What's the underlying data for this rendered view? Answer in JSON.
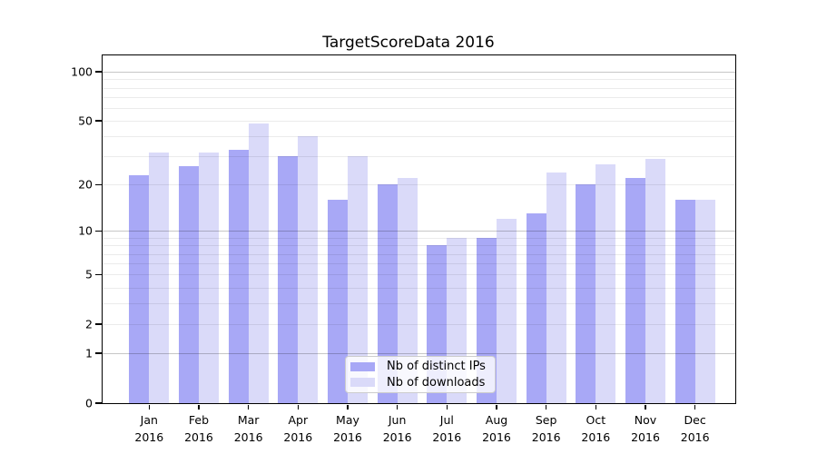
{
  "chart_data": {
    "type": "bar",
    "title": "TargetScoreData 2016",
    "categories": [
      "Jan",
      "Feb",
      "Mar",
      "Apr",
      "May",
      "Jun",
      "Jul",
      "Aug",
      "Sep",
      "Oct",
      "Nov",
      "Dec"
    ],
    "category_year": "2016",
    "series": [
      {
        "name": "Nb of distinct IPs",
        "color": "#a8a8f6",
        "values": [
          23,
          26,
          33,
          30,
          16,
          20,
          8,
          9,
          13,
          20,
          22,
          16
        ]
      },
      {
        "name": "Nb of downloads",
        "color": "#dadaf9",
        "values": [
          32,
          32,
          48,
          40,
          30,
          22,
          9,
          12,
          24,
          27,
          29,
          16
        ]
      }
    ],
    "xlabel": "",
    "ylabel": "",
    "yscale": "symlog",
    "ylim": [
      0,
      126
    ],
    "ytick_labels": [
      "0",
      "1",
      "2",
      "5",
      "10",
      "20",
      "50",
      "100"
    ],
    "ytick_values": [
      0,
      1,
      2,
      5,
      10,
      20,
      50,
      100
    ],
    "major_gridlines": [
      1,
      10,
      100
    ],
    "minor_gridlines": [
      2,
      3,
      4,
      5,
      6,
      7,
      8,
      9,
      20,
      30,
      40,
      50,
      60,
      70,
      80,
      90
    ],
    "grid": true,
    "legend_position": "lower center"
  },
  "legend": {
    "items": [
      {
        "label": "Nb of distinct IPs",
        "color": "#a8a8f6"
      },
      {
        "label": "Nb of downloads",
        "color": "#dadaf9"
      }
    ]
  },
  "colors": {
    "background": "#ffffff",
    "axis": "#000000",
    "major_grid": "rgba(0,0,0,0.22)",
    "minor_grid": "rgba(0,0,0,0.08)",
    "legend_border": "#cccccc"
  }
}
